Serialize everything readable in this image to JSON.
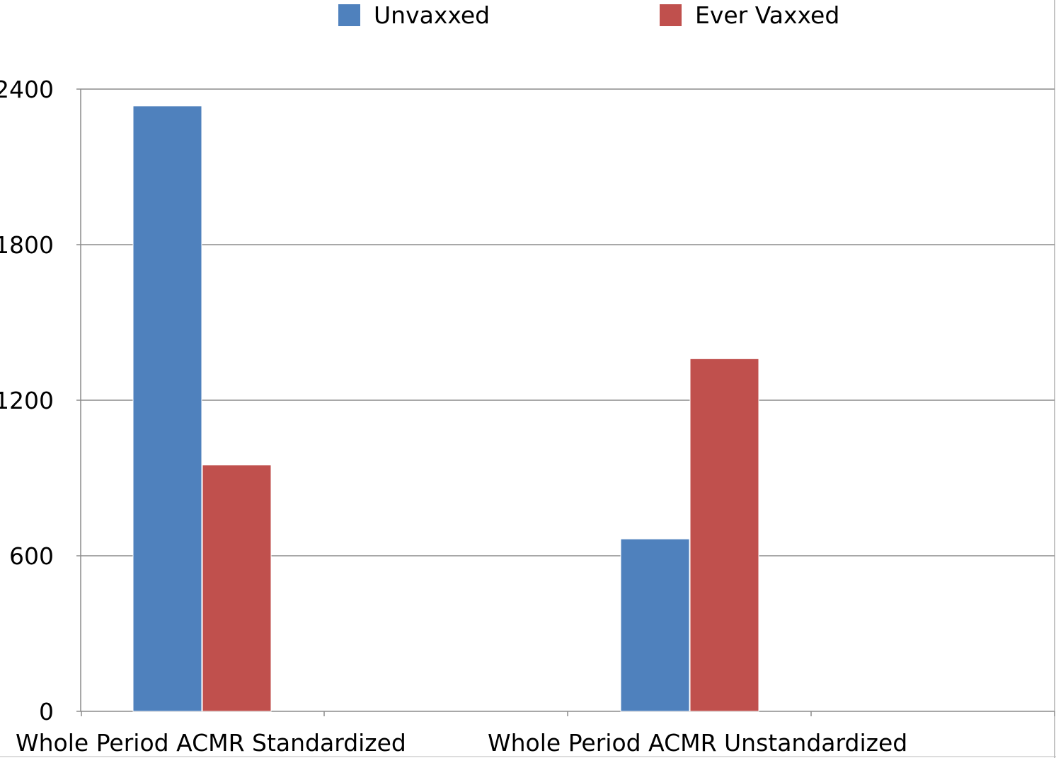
{
  "chart_data": {
    "type": "bar",
    "categories": [
      "Whole Period ACMR Standardized",
      "Whole Period ACMR Unstandardized"
    ],
    "series": [
      {
        "name": "Unvaxxed",
        "color": "#4f81bd",
        "values": [
          2335,
          665
        ]
      },
      {
        "name": "Ever Vaxxed",
        "color": "#c0504d",
        "values": [
          950,
          1360
        ]
      }
    ],
    "ylim": [
      0,
      2400
    ],
    "yticks": [
      0,
      600,
      1200,
      1800,
      2400
    ],
    "ytick_labels": [
      "0",
      "600",
      "1200",
      "1800",
      "2400"
    ],
    "grid": true,
    "legend_position": "top"
  }
}
